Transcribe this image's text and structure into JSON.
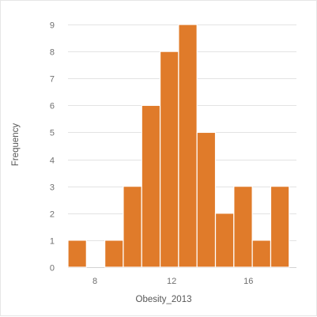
{
  "chart_data": {
    "type": "bar",
    "subtype": "histogram",
    "title": "",
    "xlabel": "Obesity_2013",
    "ylabel": "Frequency",
    "ylim": [
      0,
      9
    ],
    "yticks": [
      0,
      1,
      2,
      3,
      4,
      5,
      6,
      7,
      8,
      9
    ],
    "xlim": [
      6.6,
      18.5
    ],
    "xticks": [
      8,
      12,
      16
    ],
    "bin_width": 0.96,
    "bins": [
      {
        "start": 6.6,
        "end": 7.56,
        "count": 1
      },
      {
        "start": 7.56,
        "end": 8.52,
        "count": 0
      },
      {
        "start": 8.52,
        "end": 9.48,
        "count": 1
      },
      {
        "start": 9.48,
        "end": 10.44,
        "count": 3
      },
      {
        "start": 10.44,
        "end": 11.4,
        "count": 6
      },
      {
        "start": 11.4,
        "end": 12.36,
        "count": 8
      },
      {
        "start": 12.36,
        "end": 13.32,
        "count": 9
      },
      {
        "start": 13.32,
        "end": 14.28,
        "count": 5
      },
      {
        "start": 14.28,
        "end": 15.24,
        "count": 2
      },
      {
        "start": 15.24,
        "end": 16.2,
        "count": 3
      },
      {
        "start": 16.2,
        "end": 17.16,
        "count": 1
      },
      {
        "start": 17.16,
        "end": 18.12,
        "count": 3
      }
    ],
    "bar_color": "#e07b2a",
    "grid": true,
    "legend": "none"
  }
}
